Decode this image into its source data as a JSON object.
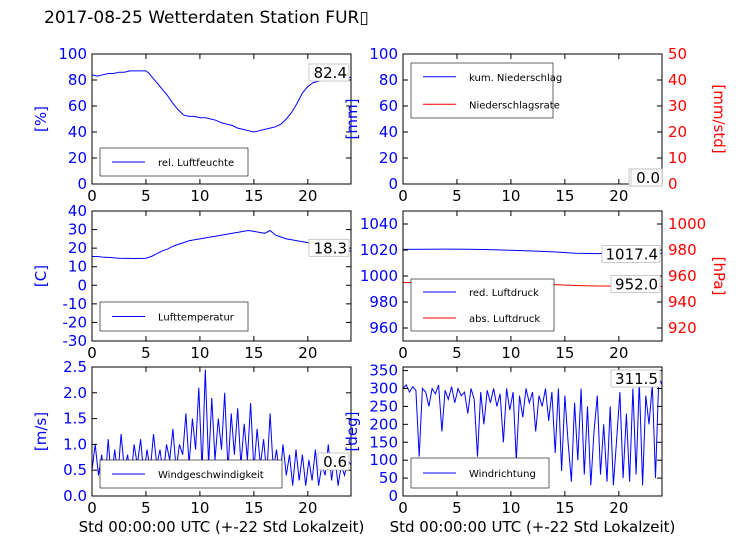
{
  "title": "2017-08-25 Wetterdaten Station FUR▯",
  "colors": {
    "blue": "#0000ff",
    "red": "#ff0000",
    "black": "#000000"
  },
  "chart_data": [
    {
      "id": "humidity",
      "type": "line",
      "ylabel": "[%]",
      "ylim": [
        0,
        100
      ],
      "yticks": [
        0,
        20,
        40,
        60,
        80,
        100
      ],
      "xlim": [
        0,
        24
      ],
      "xticks": [
        0,
        5,
        10,
        15,
        20
      ],
      "xlabel": "",
      "last_value": "82.4",
      "legend_position": "lower-left",
      "series": [
        {
          "name": "rel. Luftfeuchte",
          "color": "#0000ff",
          "x": [
            0,
            0.5,
            1,
            1.5,
            2,
            2.5,
            3,
            3.5,
            4,
            4.5,
            5,
            5.3,
            5.6,
            6,
            6.5,
            7,
            7.5,
            8,
            8.5,
            9,
            9.5,
            10,
            10.5,
            11,
            11.5,
            12,
            12.5,
            13,
            13.5,
            14,
            14.5,
            15,
            15.5,
            16,
            16.5,
            17,
            17.5,
            18,
            18.5,
            19,
            19.5,
            20,
            20.5,
            21,
            21.5,
            22,
            22.5,
            23,
            23.5,
            24
          ],
          "y": [
            84,
            83,
            84,
            85,
            85,
            86,
            86,
            87,
            87,
            87,
            87,
            85,
            82,
            78,
            73,
            68,
            62,
            57,
            53,
            52,
            52,
            51,
            51,
            50,
            49,
            47,
            46,
            45,
            43,
            42,
            41,
            40,
            41,
            42,
            43,
            44,
            46,
            50,
            55,
            62,
            70,
            75,
            78,
            79,
            80,
            80,
            81,
            82,
            82,
            82
          ]
        }
      ]
    },
    {
      "id": "precip",
      "type": "line",
      "ylabel": "[mm]",
      "ylim": [
        0,
        100
      ],
      "yticks": [
        0,
        20,
        40,
        60,
        80,
        100
      ],
      "y2label": "[mm/std]",
      "y2lim": [
        0,
        50
      ],
      "y2ticks": [
        0,
        10,
        20,
        30,
        40,
        50
      ],
      "xlim": [
        0,
        24
      ],
      "xticks": [
        0,
        5,
        10,
        15,
        20
      ],
      "xlabel": "",
      "last_value": "0.0",
      "last_value2": "0.0",
      "legend_position": "upper-left",
      "series": [
        {
          "name": "kum. Niederschlag",
          "color": "#0000ff",
          "x": [
            0,
            24
          ],
          "y": [
            0,
            0
          ]
        },
        {
          "name": "Niederschlagsrate",
          "color": "#ff0000",
          "x": [
            0,
            24
          ],
          "y": [
            0,
            0
          ]
        }
      ]
    },
    {
      "id": "temp",
      "type": "line",
      "ylabel": "[C]",
      "ylim": [
        -30,
        40
      ],
      "yticks": [
        -30,
        -20,
        -10,
        0,
        10,
        20,
        30,
        40
      ],
      "xlim": [
        0,
        24
      ],
      "xticks": [
        0,
        5,
        10,
        15,
        20
      ],
      "xlabel": "",
      "last_value": "18.3",
      "legend_position": "lower-left",
      "series": [
        {
          "name": "Lufttemperatur",
          "color": "#0000ff",
          "x": [
            0,
            0.5,
            1,
            1.5,
            2,
            2.5,
            3,
            3.5,
            4,
            4.5,
            5,
            5.5,
            6,
            6.5,
            7,
            7.5,
            8,
            8.5,
            9,
            9.5,
            10,
            10.5,
            11,
            11.5,
            12,
            12.5,
            13,
            13.5,
            14,
            14.5,
            15,
            15.5,
            16,
            16.5,
            17,
            17.5,
            18,
            18.5,
            19,
            19.5,
            20,
            20.5,
            21,
            21.5,
            22,
            22.5,
            23,
            23.5,
            24
          ],
          "y": [
            15.5,
            15.5,
            15.2,
            15,
            14.8,
            14.6,
            14.5,
            14.5,
            14.4,
            14.5,
            14.6,
            15.5,
            17,
            18.5,
            19.5,
            21,
            22,
            23,
            24,
            24.5,
            25,
            25.5,
            26,
            26.5,
            27,
            27.5,
            28,
            28.5,
            29,
            29.5,
            29,
            28.5,
            28,
            29.5,
            27,
            26,
            25,
            24.5,
            24,
            23.5,
            23,
            22,
            21.5,
            21,
            20.5,
            20,
            19.5,
            19,
            18.3
          ]
        }
      ]
    },
    {
      "id": "pressure",
      "type": "line",
      "ylim": [
        950,
        1050
      ],
      "yticks": [
        960,
        980,
        1000,
        1020,
        1040
      ],
      "y2label": "[hPa]",
      "y2lim": [
        910,
        1010
      ],
      "y2ticks": [
        920,
        940,
        960,
        980,
        1000
      ],
      "xlim": [
        0,
        24
      ],
      "xticks": [
        0,
        5,
        10,
        15,
        20
      ],
      "xlabel": "",
      "last_value": "1017.4",
      "last_value2": "952.0",
      "legend_position": "lower-left",
      "series": [
        {
          "name": "red. Luftdruck",
          "color": "#0000ff",
          "x": [
            0,
            2,
            4,
            6,
            8,
            10,
            12,
            14,
            16,
            18,
            20,
            22,
            24
          ],
          "y": [
            1020.5,
            1020.6,
            1020.7,
            1020.6,
            1020.3,
            1019.8,
            1019.2,
            1018.5,
            1017.5,
            1017.2,
            1017.4,
            1017.5,
            1017.4
          ]
        },
        {
          "name": "abs. Luftdruck",
          "color": "#ff0000",
          "axis": "y2",
          "x": [
            0,
            2,
            4,
            6,
            8,
            10,
            12,
            14,
            16,
            18,
            20,
            22,
            24
          ],
          "y": [
            955.0,
            955.1,
            955.3,
            955.2,
            955.0,
            954.5,
            954.0,
            953.4,
            952.7,
            952.3,
            952.2,
            952.1,
            952.0
          ]
        }
      ]
    },
    {
      "id": "wind",
      "type": "line",
      "ylabel": "[m/s]",
      "ylim": [
        0,
        2.5
      ],
      "yticks": [
        0.0,
        0.5,
        1.0,
        1.5,
        2.0,
        2.5
      ],
      "xlim": [
        0,
        24
      ],
      "xticks": [
        0,
        5,
        10,
        15,
        20
      ],
      "xlabel": "Std 00:00:00 UTC (+-22 Std Lokalzeit)",
      "last_value": "0.6",
      "legend_position": "lower-center",
      "series": [
        {
          "name": "Windgeschwindigkeit",
          "color": "#0000ff",
          "x": [
            0,
            0.3,
            0.6,
            0.9,
            1.2,
            1.5,
            1.8,
            2.1,
            2.4,
            2.7,
            3,
            3.3,
            3.6,
            3.9,
            4.2,
            4.5,
            4.8,
            5.1,
            5.4,
            5.7,
            6,
            6.3,
            6.6,
            6.9,
            7.2,
            7.5,
            7.8,
            8.1,
            8.4,
            8.7,
            9,
            9.3,
            9.6,
            9.9,
            10.2,
            10.5,
            10.8,
            11.1,
            11.4,
            11.7,
            12,
            12.3,
            12.6,
            12.9,
            13.2,
            13.5,
            13.8,
            14.1,
            14.4,
            14.7,
            15,
            15.3,
            15.6,
            15.9,
            16.2,
            16.5,
            16.8,
            17.1,
            17.4,
            17.7,
            18,
            18.3,
            18.6,
            18.9,
            19.2,
            19.5,
            19.8,
            20.1,
            20.4,
            20.7,
            21,
            21.3,
            21.6,
            21.9,
            22.2,
            22.5,
            22.8,
            23.1,
            23.4,
            23.7,
            24
          ],
          "y": [
            0.5,
            1.0,
            0.4,
            0.8,
            0.2,
            1.1,
            0.3,
            0.9,
            0.4,
            1.2,
            0.5,
            0.8,
            0.3,
            1.0,
            0.6,
            1.1,
            0.4,
            0.9,
            0.5,
            1.2,
            0.6,
            0.9,
            0.4,
            1.0,
            0.7,
            1.3,
            0.5,
            1.0,
            0.8,
            1.6,
            0.6,
            1.5,
            0.9,
            2.1,
            0.5,
            2.45,
            0.6,
            1.9,
            0.7,
            1.5,
            0.9,
            2.0,
            0.5,
            1.6,
            0.8,
            1.7,
            0.6,
            1.4,
            0.7,
            1.8,
            0.5,
            1.3,
            0.6,
            1.1,
            0.4,
            1.6,
            0.5,
            0.9,
            0.3,
            1.0,
            0.4,
            0.8,
            0.2,
            0.9,
            0.3,
            0.8,
            0.2,
            0.7,
            0.3,
            0.9,
            0.2,
            0.6,
            0.4,
            1.0,
            0.3,
            0.8,
            0.2,
            0.6,
            0.4,
            0.7,
            0.6
          ]
        }
      ]
    },
    {
      "id": "direction",
      "type": "line",
      "ylabel": "[deg]",
      "ylim": [
        0,
        360
      ],
      "yticks": [
        0,
        50,
        100,
        150,
        200,
        250,
        300,
        350
      ],
      "xlim": [
        0,
        24
      ],
      "xticks": [
        0,
        5,
        10,
        15,
        20
      ],
      "xlabel": "Std 00:00:00 UTC (+-22 Std Lokalzeit)",
      "last_value": "311.5",
      "legend_position": "lower-left",
      "series": [
        {
          "name": "Windrichtung",
          "color": "#0000ff",
          "x": [
            0,
            0.3,
            0.6,
            0.9,
            1.2,
            1.5,
            1.8,
            2.1,
            2.4,
            2.7,
            3,
            3.3,
            3.6,
            3.9,
            4.2,
            4.5,
            4.8,
            5.1,
            5.4,
            5.7,
            6,
            6.3,
            6.6,
            6.9,
            7.2,
            7.5,
            7.8,
            8.1,
            8.4,
            8.7,
            9,
            9.3,
            9.6,
            9.9,
            10.2,
            10.5,
            10.8,
            11.1,
            11.4,
            11.7,
            12,
            12.3,
            12.6,
            12.9,
            13.2,
            13.5,
            13.8,
            14.1,
            14.4,
            14.7,
            15,
            15.3,
            15.6,
            15.9,
            16.2,
            16.5,
            16.8,
            17.1,
            17.4,
            17.7,
            18,
            18.3,
            18.6,
            18.9,
            19.2,
            19.5,
            19.8,
            20.1,
            20.4,
            20.7,
            21,
            21.3,
            21.6,
            21.9,
            22.2,
            22.5,
            22.8,
            23.1,
            23.4,
            23.7,
            24
          ],
          "y": [
            300,
            310,
            290,
            305,
            295,
            110,
            300,
            290,
            250,
            300,
            285,
            310,
            180,
            295,
            270,
            305,
            260,
            300,
            280,
            290,
            230,
            300,
            270,
            110,
            290,
            200,
            295,
            260,
            300,
            250,
            285,
            150,
            300,
            240,
            290,
            100,
            280,
            220,
            300,
            260,
            290,
            180,
            280,
            250,
            300,
            210,
            290,
            120,
            300,
            70,
            280,
            150,
            40,
            260,
            100,
            300,
            60,
            250,
            30,
            180,
            280,
            60,
            200,
            40,
            250,
            30,
            160,
            290,
            50,
            230,
            40,
            300,
            60,
            320,
            30,
            280,
            200,
            310,
            50,
            330,
            311
          ]
        }
      ]
    }
  ]
}
